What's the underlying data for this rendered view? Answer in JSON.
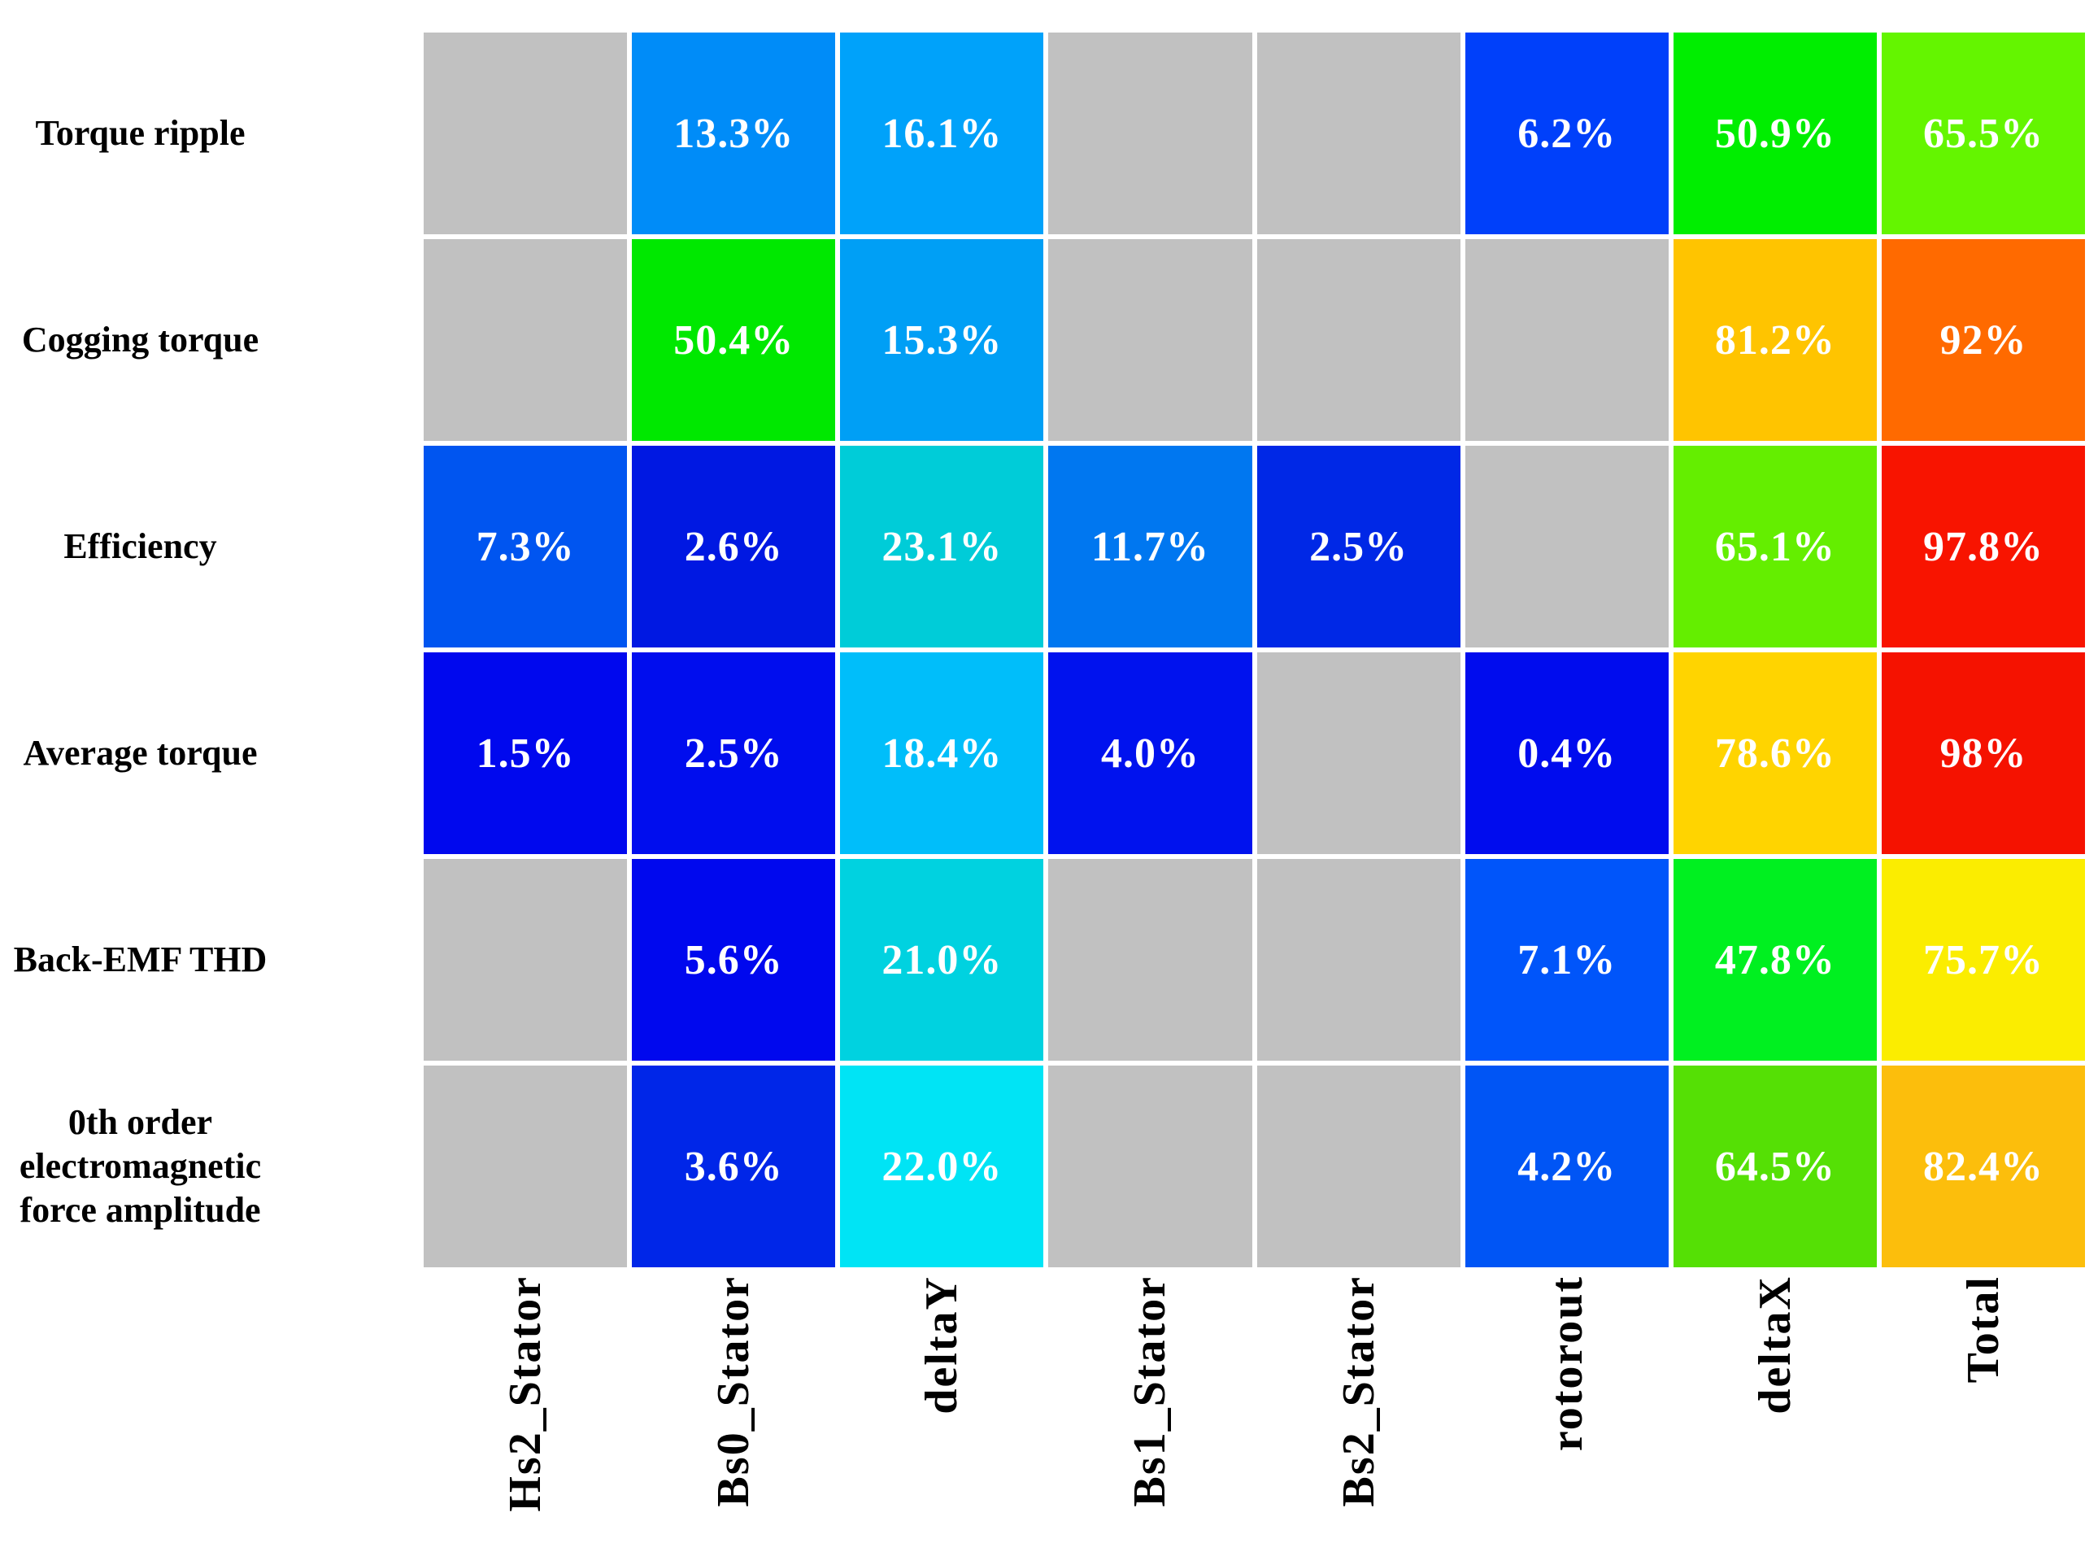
{
  "figure": {
    "background": "#FFFFFF",
    "empty_cell_color": "#C1C1C1",
    "grid_line_color": "#FFFFFF",
    "value_text_color": "#FFFFFF",
    "label_text_color": "#000000"
  },
  "chart_data": {
    "type": "heatmap",
    "title": "",
    "xlabel": "",
    "ylabel": "",
    "legend": "none",
    "grid": "white gaps between cells",
    "rows": [
      "Torque ripple",
      "Cogging torque",
      "Efficiency",
      "Average torque",
      "Back-EMF THD",
      "0th order electromagnetic force amplitude"
    ],
    "columns": [
      "Hs2_Stator",
      "Bs0_Stator",
      "deltaY",
      "Bs1_Stator",
      "Bs2_Stator",
      "rotorout",
      "deltaX",
      "Total"
    ],
    "values_percent": [
      [
        null,
        13.3,
        16.1,
        null,
        null,
        6.2,
        50.9,
        65.5
      ],
      [
        null,
        50.4,
        15.3,
        null,
        null,
        null,
        81.2,
        92
      ],
      [
        7.3,
        2.6,
        23.1,
        11.7,
        2.5,
        null,
        65.1,
        97.8
      ],
      [
        1.5,
        2.5,
        18.4,
        4.0,
        null,
        0.4,
        78.6,
        98
      ],
      [
        null,
        5.6,
        21.0,
        null,
        null,
        7.1,
        47.8,
        75.7
      ],
      [
        null,
        3.6,
        22.0,
        null,
        null,
        4.2,
        64.5,
        82.4
      ]
    ],
    "cell_labels": [
      [
        "",
        "13.3%",
        "16.1%",
        "",
        "",
        "6.2%",
        "50.9%",
        "65.5%"
      ],
      [
        "",
        "50.4%",
        "15.3%",
        "",
        "",
        "",
        "81.2%",
        "92%"
      ],
      [
        "7.3%",
        "2.6%",
        "23.1%",
        "11.7%",
        "2.5%",
        "",
        "65.1%",
        "97.8%"
      ],
      [
        "1.5%",
        "2.5%",
        "18.4%",
        "4.0%",
        "",
        "0.4%",
        "78.6%",
        "98%"
      ],
      [
        "",
        "5.6%",
        "21.0%",
        "",
        "",
        "7.1%",
        "47.8%",
        "75.7%"
      ],
      [
        "",
        "3.6%",
        "22.0%",
        "",
        "",
        "4.2%",
        "64.5%",
        "82.4%"
      ]
    ],
    "cell_colors": [
      [
        null,
        "#008CF8",
        "#00A2FA",
        null,
        null,
        "#0040FA",
        "#00EE00",
        "#64F500"
      ],
      [
        null,
        "#00E800",
        "#009FF5",
        null,
        null,
        null,
        "#FFC400",
        "#FF6A00"
      ],
      [
        "#0055F0",
        "#0018E2",
        "#00CCD8",
        "#0077F0",
        "#0028E6",
        null,
        "#64EE00",
        "#F81400"
      ],
      [
        "#0008EE",
        "#000DEE",
        "#00BEFA",
        "#0012EE",
        null,
        "#000CEE",
        "#FFD400",
        "#F51200"
      ],
      [
        null,
        "#0008EE",
        "#00D2E0",
        null,
        null,
        "#0055FA",
        "#00F020",
        "#FBED00"
      ],
      [
        null,
        "#0026E8",
        "#00E4F5",
        null,
        null,
        "#0055F5",
        "#55E005",
        "#FCBE0C"
      ]
    ]
  }
}
